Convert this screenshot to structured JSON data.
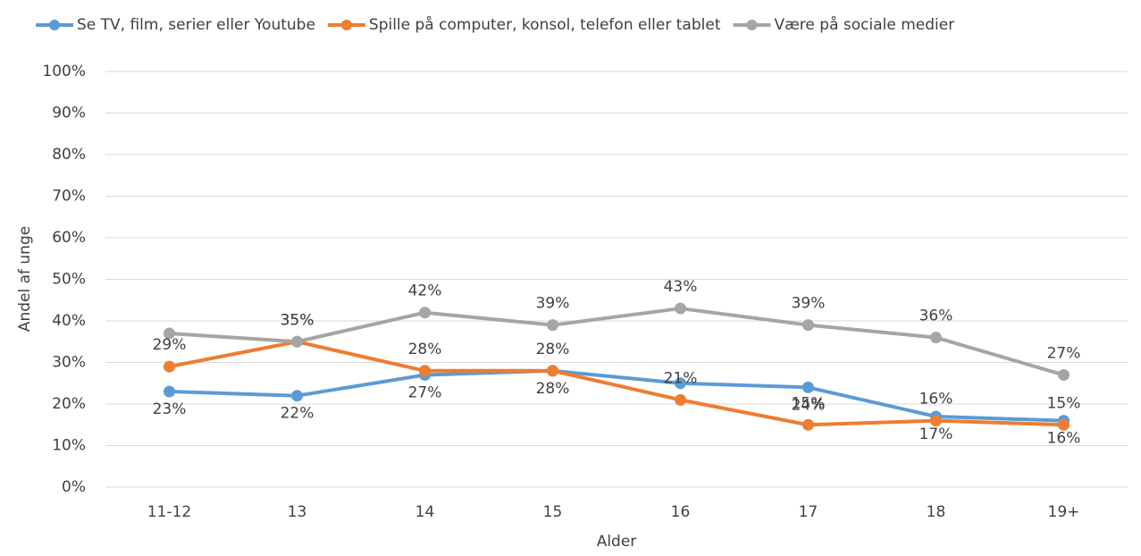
{
  "chart_data": {
    "type": "line",
    "categories": [
      "11-12",
      "13",
      "14",
      "15",
      "16",
      "17",
      "18",
      "19+"
    ],
    "series": [
      {
        "name": "Se TV, film, serier eller Youtube",
        "color": "#5b9bd5",
        "values": [
          23,
          22,
          27,
          28,
          25,
          24,
          17,
          16
        ],
        "value_labels": [
          "23%",
          "22%",
          "27%",
          "28%",
          null,
          "24%",
          "17%",
          "16%"
        ]
      },
      {
        "name": "Spille på computer, konsol, telefon eller tablet",
        "color": "#ed7d31",
        "values": [
          29,
          35,
          28,
          28,
          21,
          15,
          16,
          15
        ],
        "value_labels": [
          "29%",
          "35%",
          "28%",
          "28%",
          "21%",
          "15%",
          "16%",
          "15%"
        ]
      },
      {
        "name": "Være på sociale medier",
        "color": "#a5a5a5",
        "values": [
          37,
          35,
          42,
          39,
          43,
          39,
          36,
          27
        ],
        "value_labels": [
          null,
          "35%",
          "42%",
          "39%",
          "43%",
          "39%",
          "36%",
          "27%"
        ]
      }
    ],
    "ylabel": "Andel af unge",
    "xlabel": "Alder",
    "ylim": [
      0,
      100
    ],
    "yticks": [
      {
        "value": 0,
        "label": "0%"
      },
      {
        "value": 10,
        "label": "10%"
      },
      {
        "value": 20,
        "label": "20%"
      },
      {
        "value": 30,
        "label": "30%"
      },
      {
        "value": 40,
        "label": "40%"
      },
      {
        "value": 50,
        "label": "50%"
      },
      {
        "value": 60,
        "label": "60%"
      },
      {
        "value": 70,
        "label": "70%"
      },
      {
        "value": 80,
        "label": "80%"
      },
      {
        "value": 90,
        "label": "90%"
      },
      {
        "value": 100,
        "label": "100%"
      }
    ],
    "grid": true,
    "legend": "top"
  }
}
